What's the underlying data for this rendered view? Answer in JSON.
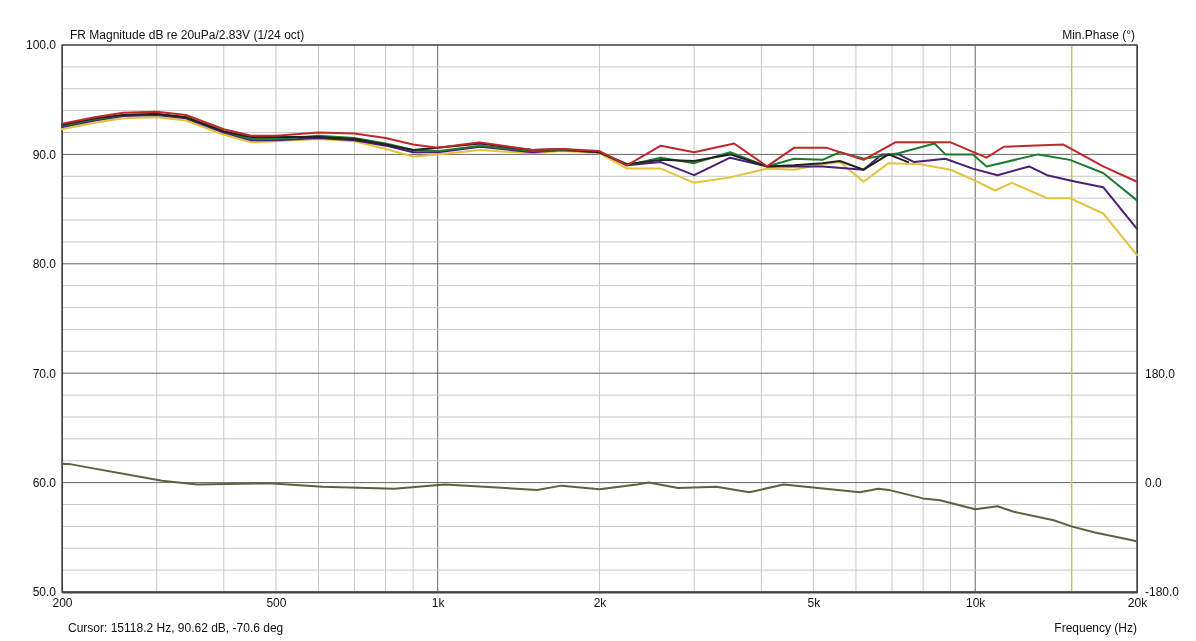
{
  "chart_data": {
    "type": "line",
    "title": "FR Magnitude dB re 20uPa/2.83V (1/24 oct)",
    "xlabel": "Frequency (Hz)",
    "y2label": "Min.Phase (°)",
    "log": "x",
    "grid": true,
    "xlim": [
      200,
      20000
    ],
    "xticks": [
      200,
      {
        "value": 300,
        "label": null
      },
      {
        "value": 400,
        "label": null
      },
      500,
      {
        "value": 600,
        "label": null
      },
      {
        "value": 700,
        "label": null
      },
      {
        "value": 800,
        "label": null
      },
      {
        "value": 900,
        "label": null
      },
      {
        "value": 1000,
        "label": "1k"
      },
      {
        "value": 2000,
        "label": "2k"
      },
      {
        "value": 3000,
        "label": null
      },
      {
        "value": 4000,
        "label": null
      },
      {
        "value": 5000,
        "label": "5k"
      },
      {
        "value": 6000,
        "label": null
      },
      {
        "value": 7000,
        "label": null
      },
      {
        "value": 8000,
        "label": null
      },
      {
        "value": 9000,
        "label": null
      },
      {
        "value": 10000,
        "label": "10k"
      },
      {
        "value": 20000,
        "label": "20k"
      }
    ],
    "ylim": [
      50,
      100
    ],
    "yticks": [
      {
        "value": 50,
        "label": "50.0"
      },
      {
        "value": 52,
        "label": null
      },
      {
        "value": 54,
        "label": null
      },
      {
        "value": 56,
        "label": null
      },
      {
        "value": 58,
        "label": null
      },
      {
        "value": 60,
        "label": "60.0"
      },
      {
        "value": 62,
        "label": null
      },
      {
        "value": 64,
        "label": null
      },
      {
        "value": 66,
        "label": null
      },
      {
        "value": 68,
        "label": null
      },
      {
        "value": 70,
        "label": "70.0"
      },
      {
        "value": 72,
        "label": null
      },
      {
        "value": 74,
        "label": null
      },
      {
        "value": 76,
        "label": null
      },
      {
        "value": 78,
        "label": null
      },
      {
        "value": 80,
        "label": "80.0"
      },
      {
        "value": 82,
        "label": null
      },
      {
        "value": 84,
        "label": null
      },
      {
        "value": 86,
        "label": null
      },
      {
        "value": 88,
        "label": null
      },
      {
        "value": 90,
        "label": "90.0"
      },
      {
        "value": 92,
        "label": null
      },
      {
        "value": 94,
        "label": null
      },
      {
        "value": 96,
        "label": null
      },
      {
        "value": 98,
        "label": null
      },
      {
        "value": 100,
        "label": "100.0"
      }
    ],
    "y2lim": [
      -180,
      720
    ],
    "y2ticks": [
      {
        "value": -180,
        "label": "-180.0"
      },
      {
        "value": 0,
        "label": "0.0"
      },
      {
        "value": 180,
        "label": "180.0"
      }
    ],
    "ref_lines": [
      {
        "axis": "x",
        "value": 15118.2,
        "color": "#c8c050"
      }
    ],
    "annotations": [
      "Cursor: 15118.2 Hz, 90.62 dB, -70.6 deg"
    ],
    "series": [
      {
        "color": "#5a6340",
        "axis": "y2",
        "x": [
          200,
          208,
          307,
          357,
          485,
          611,
          830,
          1030,
          1220,
          1530,
          1700,
          2000,
          2350,
          2470,
          2800,
          3300,
          3800,
          4400,
          5100,
          6100,
          6600,
          6900,
          8000,
          8600,
          10000,
          11000,
          11800,
          14000,
          15100,
          16700,
          19600,
          20000
        ],
        "values": [
          31,
          30,
          3,
          -3,
          -1,
          -7,
          -10,
          -3,
          -7,
          -12,
          -5,
          -11,
          -3,
          0,
          -9,
          -7,
          -16,
          -3,
          -9,
          -16,
          -10,
          -12,
          -26,
          -29,
          -44,
          -39,
          -48,
          -62,
          -72,
          -82,
          -95,
          -97
        ]
      },
      {
        "color": "#e6c23a",
        "x": [
          200,
          230,
          260,
          300,
          340,
          400,
          450,
          500,
          600,
          700,
          800,
          900,
          1000,
          1200,
          1500,
          1700,
          2000,
          2250,
          2600,
          3000,
          3500,
          4100,
          4600,
          5200,
          5600,
          6200,
          6900,
          7900,
          9000,
          9900,
          10900,
          11700,
          13600,
          15000,
          17300,
          20000
        ],
        "values": [
          92.3,
          92.9,
          93.3,
          93.4,
          93.1,
          91.8,
          91.1,
          91.2,
          91.4,
          91.2,
          90.5,
          89.8,
          90.0,
          90.4,
          90.1,
          90.3,
          90.1,
          88.7,
          88.7,
          87.4,
          87.9,
          88.7,
          88.6,
          89.1,
          89.3,
          87.5,
          89.2,
          89.1,
          88.6,
          87.7,
          86.7,
          87.4,
          86.0,
          86.0,
          84.6,
          80.8
        ]
      },
      {
        "color": "#4a1f78",
        "x": [
          200,
          230,
          260,
          300,
          340,
          400,
          450,
          500,
          600,
          700,
          800,
          900,
          1000,
          1200,
          1500,
          1700,
          2000,
          2250,
          2600,
          3000,
          3500,
          4100,
          4600,
          5200,
          6200,
          6700,
          7200,
          7700,
          8800,
          9900,
          11000,
          12600,
          13600,
          15400,
          17300,
          20000
        ],
        "values": [
          92.5,
          93.1,
          93.5,
          93.6,
          93.3,
          92.0,
          91.3,
          91.3,
          91.5,
          91.3,
          90.8,
          90.2,
          90.2,
          90.7,
          90.2,
          90.4,
          90.2,
          89.0,
          89.3,
          88.1,
          89.7,
          88.9,
          88.9,
          88.9,
          88.6,
          90.0,
          90.0,
          89.3,
          89.6,
          88.7,
          88.1,
          88.9,
          88.1,
          87.5,
          87.0,
          83.2
        ]
      },
      {
        "color": "#1e7a2e",
        "x": [
          200,
          230,
          260,
          300,
          340,
          400,
          450,
          500,
          600,
          700,
          800,
          900,
          1000,
          1200,
          1500,
          1700,
          2000,
          2250,
          2600,
          3000,
          3500,
          4100,
          4600,
          5200,
          5600,
          6200,
          7200,
          8400,
          8800,
          9900,
          10500,
          13100,
          15000,
          17300,
          20000
        ],
        "values": [
          92.6,
          93.2,
          93.6,
          93.7,
          93.4,
          92.1,
          91.4,
          91.4,
          91.7,
          91.5,
          91.0,
          90.4,
          90.3,
          90.8,
          90.3,
          90.4,
          90.2,
          89.0,
          89.7,
          89.2,
          90.2,
          88.9,
          89.6,
          89.5,
          90.2,
          89.6,
          90.1,
          91.0,
          90.0,
          90.0,
          88.9,
          90.0,
          89.5,
          88.3,
          85.8
        ]
      },
      {
        "color": "#222222",
        "x": [
          200,
          230,
          260,
          300,
          340,
          400,
          450,
          500,
          600,
          700,
          800,
          900,
          1000,
          1200,
          1500,
          1700,
          2000,
          2250,
          2600,
          3000,
          3500,
          4100,
          4600,
          5200,
          5600,
          6200,
          6900,
          7500
        ],
        "values": [
          92.7,
          93.3,
          93.6,
          93.7,
          93.4,
          92.1,
          91.6,
          91.6,
          91.6,
          91.4,
          90.9,
          90.4,
          90.6,
          91.0,
          90.4,
          90.5,
          90.2,
          89.1,
          89.5,
          89.4,
          90.0,
          88.9,
          89.0,
          89.2,
          89.4,
          88.6,
          90.0,
          89.3
        ]
      },
      {
        "color": "#c0282a",
        "x": [
          200,
          230,
          260,
          300,
          340,
          400,
          450,
          500,
          600,
          700,
          800,
          900,
          1000,
          1200,
          1500,
          1700,
          2000,
          2250,
          2600,
          3000,
          3560,
          4100,
          4600,
          5300,
          6200,
          7100,
          9000,
          10500,
          11300,
          14600,
          17300,
          20000
        ],
        "values": [
          92.8,
          93.4,
          93.8,
          93.9,
          93.6,
          92.3,
          91.7,
          91.7,
          92.0,
          91.9,
          91.5,
          90.9,
          90.6,
          91.1,
          90.4,
          90.5,
          90.3,
          89.0,
          90.8,
          90.2,
          91.0,
          88.9,
          90.6,
          90.6,
          89.5,
          91.1,
          91.1,
          89.7,
          90.7,
          90.9,
          88.9,
          87.5
        ]
      }
    ]
  }
}
